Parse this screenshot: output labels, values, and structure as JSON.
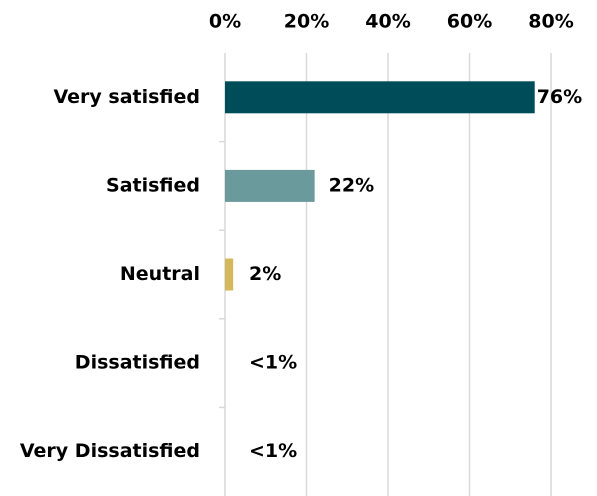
{
  "chart_data": {
    "type": "bar",
    "categories": [
      "Very satisfied",
      "Satisfied",
      "Neutral",
      "Dissatisfied",
      "Very Dissatisfied"
    ],
    "values": [
      76,
      22,
      2,
      0,
      0
    ],
    "value_labels": [
      "76%",
      "22%",
      "2%",
      "<1%",
      "<1%"
    ],
    "colors": [
      "#004d5a",
      "#6a9a9c",
      "#d4b85a",
      "#a5a5a5",
      "#a5a5a5"
    ],
    "xlim": [
      0,
      80
    ],
    "xticks": [
      {
        "value": 0,
        "label": "0%"
      },
      {
        "value": 20,
        "label": "20%"
      },
      {
        "value": 40,
        "label": "40%"
      },
      {
        "value": 60,
        "label": "60%"
      },
      {
        "value": 80,
        "label": "80%"
      }
    ],
    "grid": true
  }
}
